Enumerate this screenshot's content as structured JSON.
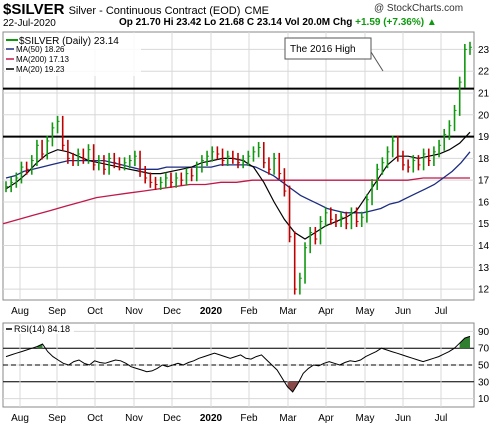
{
  "header": {
    "symbol": "$SILVER",
    "description": "Silver - Continuous Contract (EOD)",
    "exchange": "CME",
    "date": "22-Jul-2020",
    "open_label": "Op",
    "open": "21.70",
    "high_label": "Hi",
    "high": "23.42",
    "low_label": "Lo",
    "low": "21.68",
    "close_label": "C",
    "close": "23.14",
    "volume_label": "Vol",
    "volume": "20.0M",
    "change_label": "Chg",
    "change": "+1.59 (+7.36%)",
    "up_arrow": "▲",
    "credit": "@ StockCharts.com"
  },
  "colors": {
    "price_up": "#109810",
    "price_down": "#c00000",
    "ma50": "#1c2c80",
    "ma200": "#c0184a",
    "ma20": "#000000",
    "grid": "#d8d8d8",
    "rsi_fill_high": "#2f7f2f",
    "rsi_fill_low": "#8a4a4a"
  },
  "chart_data": [
    {
      "type": "line",
      "title": "$SILVER (Daily) 23.14",
      "series": [
        {
          "name": "$SILVER (Daily) 23.14",
          "style": "ohlc-bars",
          "values": [
            16.7,
            16.9,
            17.1,
            17.6,
            17.5,
            17.9,
            18.6,
            18.2,
            18.8,
            19.4,
            19.7,
            18.6,
            18.0,
            17.9,
            18.2,
            18.0,
            18.4,
            17.7,
            17.9,
            17.5,
            18.0,
            17.8,
            17.7,
            17.8,
            17.9,
            18.1,
            17.4,
            17.1,
            16.9,
            16.8,
            16.9,
            17.1,
            16.9,
            17.1,
            17.0,
            17.3,
            17.2,
            17.6,
            17.9,
            18.1,
            18.3,
            18.2,
            17.9,
            18.1,
            18.0,
            17.8,
            17.9,
            18.1,
            18.3,
            18.5,
            17.8,
            17.5,
            18.0,
            17.3,
            16.5,
            14.4,
            12.0,
            12.5,
            13.9,
            14.6,
            14.3,
            15.1,
            15.5,
            15.2,
            15.1,
            15.3,
            15.0,
            15.5,
            15.1,
            15.3,
            16.1,
            16.8,
            17.5,
            17.8,
            18.3,
            18.8,
            18.1,
            17.7,
            17.6,
            17.9,
            17.7,
            18.2,
            17.9,
            18.3,
            18.6,
            19.1,
            19.5,
            20.2,
            21.5,
            23.0,
            23.1
          ]
        },
        {
          "name": "MA(50) 18.26",
          "values": [
            17.1,
            17.2,
            17.4,
            17.5,
            17.6,
            17.7,
            17.8,
            17.9,
            17.9,
            17.9,
            17.9,
            17.9,
            17.8,
            17.7,
            17.6,
            17.5,
            17.5,
            17.5,
            17.6,
            17.6,
            17.6,
            17.6,
            17.6,
            17.6,
            17.7,
            17.7,
            17.7,
            17.7,
            17.6,
            17.4,
            17.2,
            16.9,
            16.6,
            16.3,
            16.1,
            15.9,
            15.7,
            15.6,
            15.5,
            15.5,
            15.5,
            15.6,
            15.7,
            15.9,
            16.0,
            16.2,
            16.4,
            16.6,
            16.8,
            17.1,
            17.4,
            17.8,
            18.3
          ]
        },
        {
          "name": "MA(200) 17.13",
          "values": [
            15.0,
            15.2,
            15.4,
            15.6,
            15.8,
            16.0,
            16.2,
            16.3,
            16.4,
            16.5,
            16.6,
            16.7,
            16.8,
            16.8,
            16.9,
            16.9,
            17.0,
            17.0,
            17.0,
            17.0,
            17.0,
            17.0,
            17.0,
            17.0,
            17.0,
            17.0,
            17.0,
            17.1,
            17.1,
            17.1,
            17.1
          ]
        },
        {
          "name": "MA(20) 19.23",
          "values": [
            16.6,
            16.9,
            17.3,
            17.8,
            18.2,
            18.4,
            18.3,
            18.1,
            17.9,
            17.8,
            17.7,
            17.6,
            17.5,
            17.4,
            17.3,
            17.3,
            17.4,
            17.5,
            17.6,
            17.8,
            17.9,
            18.0,
            18.0,
            17.9,
            17.6,
            16.9,
            16.0,
            15.2,
            14.6,
            14.3,
            14.6,
            14.9,
            15.1,
            15.3,
            15.6,
            16.3,
            17.0,
            17.7,
            18.1,
            18.1,
            18.0,
            18.1,
            18.2,
            18.4,
            18.7,
            19.2
          ]
        }
      ],
      "x_ticks": [
        "Aug",
        "Sep",
        "Oct",
        "Nov",
        "Dec",
        "2020",
        "Feb",
        "Mar",
        "Apr",
        "May",
        "Jun",
        "Jul"
      ],
      "y_ticks": [
        12,
        13,
        14,
        15,
        16,
        17,
        18,
        19,
        20,
        21,
        22,
        23
      ],
      "ylim": [
        11.5,
        23.8
      ],
      "horizontal_lines": [
        21.2,
        19.0
      ],
      "annotation": "The 2016 High",
      "legend": [
        "$SILVER (Daily) 23.14",
        "MA(50) 18.26",
        "MA(200) 17.13",
        "MA(20) 19.23"
      ],
      "legend_position": "top-left",
      "grid": true
    },
    {
      "type": "line",
      "title": "RSI(14) 84.18",
      "series": [
        {
          "name": "RSI(14) 84.18",
          "values": [
            60,
            62,
            64,
            66,
            68,
            70,
            72,
            75,
            66,
            60,
            56,
            52,
            50,
            54,
            56,
            52,
            50,
            55,
            53,
            52,
            54,
            56,
            55,
            52,
            48,
            46,
            44,
            42,
            43,
            46,
            50,
            48,
            50,
            52,
            50,
            53,
            55,
            58,
            60,
            62,
            64,
            62,
            60,
            58,
            60,
            62,
            58,
            57,
            60,
            62,
            56,
            50,
            44,
            34,
            24,
            18,
            28,
            40,
            46,
            50,
            49,
            52,
            54,
            52,
            50,
            53,
            55,
            54,
            56,
            60,
            63,
            66,
            70,
            68,
            66,
            64,
            62,
            60,
            58,
            56,
            54,
            56,
            58,
            60,
            63,
            66,
            70,
            76,
            82,
            84
          ]
        }
      ],
      "y_ticks": [
        10,
        30,
        50,
        70,
        90
      ],
      "ylim": [
        0,
        100
      ],
      "reference_lines": [
        70,
        50,
        30
      ],
      "x_ticks": [
        "Aug",
        "Sep",
        "Oct",
        "Nov",
        "Dec",
        "2020",
        "Feb",
        "Mar",
        "Apr",
        "May",
        "Jun",
        "Jul"
      ],
      "grid": true
    }
  ]
}
